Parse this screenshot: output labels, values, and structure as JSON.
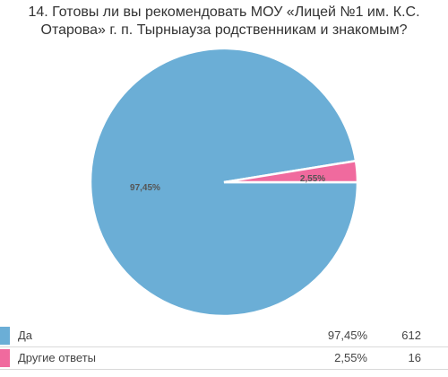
{
  "chart_data": {
    "type": "pie",
    "title": "14. Готовы ли вы рекомендовать МОУ «Лицей №1 им. К.С. Отарова» г. п. Тырныауза родственникам и знакомым?",
    "slices": [
      {
        "label": "Да",
        "value": 97.45,
        "percent_label": "97,45%",
        "legend_percent": "97,45%",
        "count": "612",
        "color": "#6baed6"
      },
      {
        "label": "Другие ответы",
        "value": 2.55,
        "percent_label": "2,55%",
        "legend_percent": "2,55%",
        "count": "16",
        "color": "#f06a9e"
      }
    ]
  }
}
